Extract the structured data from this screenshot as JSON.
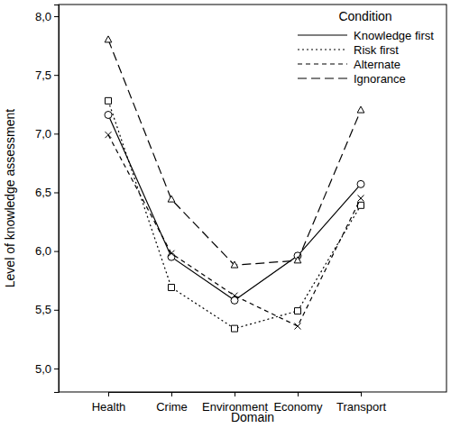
{
  "chart_data": {
    "type": "line",
    "x_label": "Domain",
    "y_label": "Level of knowledge assessment",
    "legend_title": "Condition",
    "legend": "upper right",
    "categories": [
      "Health",
      "Crime",
      "Environment",
      "Economy",
      "Transport"
    ],
    "series": [
      {
        "name": "Knowledge first",
        "color": "#000000",
        "marker": "circle",
        "line_style": "solid",
        "values": [
          7.16,
          5.95,
          5.58,
          5.96,
          6.57
        ]
      },
      {
        "name": "Risk first",
        "color": "#000000",
        "marker": "square",
        "line_style": "dotted",
        "values": [
          7.28,
          5.69,
          5.34,
          5.49,
          6.39
        ]
      },
      {
        "name": "Alternate",
        "color": "#000000",
        "marker": "cross",
        "line_style": "dashed",
        "values": [
          6.99,
          5.98,
          5.62,
          5.36,
          6.45
        ]
      },
      {
        "name": "Ignorance",
        "color": "#000000",
        "marker": "triangle",
        "line_style": "long_dashed",
        "values": [
          7.8,
          6.44,
          5.88,
          5.92,
          7.2
        ]
      }
    ],
    "ylim": [
      4.8,
      8.1
    ],
    "yticks": [
      {
        "value": 5.0,
        "label": "5,0"
      },
      {
        "value": 5.5,
        "label": "5,5"
      },
      {
        "value": 6.0,
        "label": "6,0"
      },
      {
        "value": 6.5,
        "label": "6,5"
      },
      {
        "value": 7.0,
        "label": "7,0"
      },
      {
        "value": 7.5,
        "label": "7,5"
      },
      {
        "value": 8.0,
        "label": "8,0"
      }
    ],
    "grid": false
  }
}
